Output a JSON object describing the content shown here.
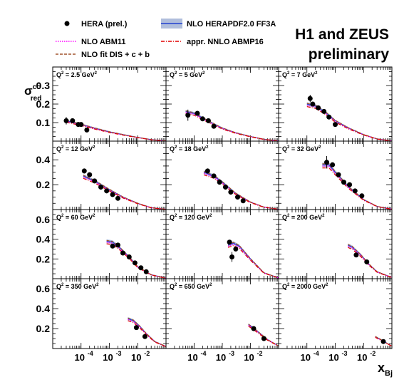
{
  "header": {
    "title_line1": "H1 and ZEUS",
    "title_line2": "preliminary"
  },
  "legend": {
    "hera": "HERA (prel.)",
    "abm11": "NLO ABM11",
    "fitdis": "NLO fit DIS + c + b",
    "herapdf": "NLO HERAPDF2.0 FF3A",
    "abmp16": "appr. NNLO ABMP16"
  },
  "axes": {
    "ylabel_main": "σ",
    "ylabel_sup": "cc̄",
    "ylabel_sub": "red",
    "xlabel_main": "x",
    "xlabel_sub": "Bj"
  },
  "chart_data": {
    "type": "scatter",
    "xscale": "log",
    "xlim": [
      1e-05,
      0.1
    ],
    "x_ticks": [
      {
        "exp": "-4",
        "value": 0.0001
      },
      {
        "exp": "-3",
        "value": 0.001
      },
      {
        "exp": "-2",
        "value": 0.01
      }
    ],
    "colors": {
      "hera": "#000000",
      "abm11": "#ff00ff",
      "fitdis": "#a0522d",
      "herapdf": "#2040d0",
      "herapdf_band": "#b0bedc",
      "abmp16": "#e00000"
    },
    "rows": [
      {
        "ylim": [
          0,
          0.4
        ],
        "ticks": [
          {
            "v": 0.1,
            "label": "0.1"
          },
          {
            "v": 0.2,
            "label": "0.2"
          },
          {
            "v": 0.3,
            "label": "0.3"
          }
        ]
      },
      {
        "ylim": [
          0,
          0.55
        ],
        "ticks": [
          {
            "v": 0.2,
            "label": "0.2"
          },
          {
            "v": 0.4,
            "label": "0.4"
          }
        ]
      },
      {
        "ylim": [
          0,
          0.7
        ],
        "ticks": [
          {
            "v": 0.2,
            "label": "0.2"
          },
          {
            "v": 0.4,
            "label": "0.4"
          },
          {
            "v": 0.6,
            "label": "0.6"
          }
        ]
      },
      {
        "ylim": [
          0,
          0.7
        ],
        "ticks": [
          {
            "v": 0.2,
            "label": "0.2"
          },
          {
            "v": 0.4,
            "label": "0.4"
          },
          {
            "v": 0.6,
            "label": "0.6"
          }
        ]
      }
    ],
    "panels": [
      {
        "q2": "2.5",
        "row": 0,
        "col": 0,
        "points": [
          [
            3e-05,
            0.11,
            0.02
          ],
          [
            5e-05,
            0.11,
            0.01
          ],
          [
            8e-05,
            0.09,
            0.01
          ],
          [
            0.0001,
            0.09,
            0.01
          ],
          [
            0.00016,
            0.06,
            0.01
          ]
        ],
        "theory": {
          "x": [
            3e-05,
            0.0001,
            0.0003,
            0.001,
            0.003,
            0.01,
            0.03,
            0.1
          ],
          "y": [
            0.11,
            0.09,
            0.07,
            0.05,
            0.035,
            0.02,
            0.008,
            0.001
          ]
        }
      },
      {
        "q2": "5",
        "row": 0,
        "col": 1,
        "points": [
          [
            6e-05,
            0.14,
            0.03
          ],
          [
            0.00013,
            0.15,
            0.01
          ],
          [
            0.0002,
            0.12,
            0.01
          ],
          [
            0.00032,
            0.11,
            0.01
          ],
          [
            0.0005,
            0.08,
            0.01
          ]
        ],
        "theory": {
          "x": [
            5e-05,
            0.0001,
            0.0003,
            0.001,
            0.003,
            0.01,
            0.03,
            0.1
          ],
          "y": [
            0.16,
            0.15,
            0.11,
            0.07,
            0.045,
            0.025,
            0.01,
            0.001
          ]
        }
      },
      {
        "q2": "7",
        "row": 0,
        "col": 2,
        "points": [
          [
            0.00013,
            0.23,
            0.02
          ],
          [
            0.00016,
            0.2,
            0.01
          ],
          [
            0.00025,
            0.18,
            0.01
          ],
          [
            0.0004,
            0.16,
            0.01
          ],
          [
            0.0006,
            0.13,
            0.01
          ],
          [
            0.001,
            0.09,
            0.01
          ]
        ],
        "theory": {
          "x": [
            0.0001,
            0.0002,
            0.0005,
            0.001,
            0.003,
            0.01,
            0.03,
            0.1
          ],
          "y": [
            0.2,
            0.19,
            0.15,
            0.11,
            0.07,
            0.035,
            0.012,
            0.001
          ]
        }
      },
      {
        "q2": "12",
        "row": 1,
        "col": 0,
        "points": [
          [
            0.00013,
            0.31,
            0.02
          ],
          [
            0.0002,
            0.28,
            0.01
          ],
          [
            0.0003,
            0.23,
            0.01
          ],
          [
            0.0005,
            0.18,
            0.01
          ],
          [
            0.0008,
            0.15,
            0.01
          ],
          [
            0.0013,
            0.12,
            0.01
          ],
          [
            0.002,
            0.09,
            0.01
          ]
        ],
        "theory": {
          "x": [
            0.00012,
            0.0003,
            0.001,
            0.003,
            0.01,
            0.03,
            0.1
          ],
          "y": [
            0.27,
            0.23,
            0.16,
            0.1,
            0.05,
            0.015,
            0.002
          ]
        }
      },
      {
        "q2": "18",
        "row": 1,
        "col": 1,
        "points": [
          [
            0.0003,
            0.31,
            0.02
          ],
          [
            0.0005,
            0.27,
            0.01
          ],
          [
            0.0008,
            0.22,
            0.01
          ],
          [
            0.0013,
            0.18,
            0.01
          ],
          [
            0.002,
            0.14,
            0.01
          ],
          [
            0.0035,
            0.1,
            0.01
          ],
          [
            0.0055,
            0.07,
            0.01
          ]
        ],
        "theory": {
          "x": [
            0.00022,
            0.0005,
            0.001,
            0.003,
            0.01,
            0.03,
            0.1
          ],
          "y": [
            0.3,
            0.27,
            0.22,
            0.13,
            0.06,
            0.02,
            0.002
          ]
        }
      },
      {
        "q2": "32",
        "row": 1,
        "col": 2,
        "points": [
          [
            0.0005,
            0.38,
            0.05
          ],
          [
            0.0008,
            0.36,
            0.01
          ],
          [
            0.0013,
            0.28,
            0.01
          ],
          [
            0.002,
            0.22,
            0.01
          ],
          [
            0.0032,
            0.2,
            0.01
          ],
          [
            0.005,
            0.15,
            0.01
          ],
          [
            0.0087,
            0.11,
            0.01
          ]
        ],
        "theory": {
          "x": [
            0.00035,
            0.0006,
            0.001,
            0.003,
            0.01,
            0.03,
            0.1
          ],
          "y": [
            0.36,
            0.36,
            0.3,
            0.18,
            0.08,
            0.025,
            0.003
          ]
        }
      },
      {
        "q2": "60",
        "row": 2,
        "col": 0,
        "points": [
          [
            0.0013,
            0.33,
            0.02
          ],
          [
            0.002,
            0.34,
            0.01
          ],
          [
            0.003,
            0.26,
            0.01
          ],
          [
            0.005,
            0.22,
            0.01
          ],
          [
            0.008,
            0.16,
            0.01
          ],
          [
            0.013,
            0.11,
            0.01
          ],
          [
            0.02,
            0.07,
            0.01
          ]
        ],
        "theory": {
          "x": [
            0.0008,
            0.0013,
            0.002,
            0.005,
            0.01,
            0.03,
            0.1
          ],
          "y": [
            0.38,
            0.37,
            0.33,
            0.22,
            0.12,
            0.04,
            0.005
          ]
        }
      },
      {
        "q2": "120",
        "row": 2,
        "col": 1,
        "points": [
          [
            0.0018,
            0.37,
            0.02
          ],
          [
            0.0022,
            0.22,
            0.05
          ],
          [
            0.003,
            0.3,
            0.01
          ]
        ],
        "theory": {
          "x": [
            0.0016,
            0.0025,
            0.004,
            0.01,
            0.03,
            0.1
          ],
          "y": [
            0.34,
            0.36,
            0.33,
            0.2,
            0.06,
            0.008
          ]
        }
      },
      {
        "q2": "200",
        "row": 2,
        "col": 2,
        "points": [
          [
            0.0055,
            0.24,
            0.02
          ],
          [
            0.013,
            0.17,
            0.02
          ]
        ],
        "theory": {
          "x": [
            0.0028,
            0.004,
            0.008,
            0.015,
            0.03,
            0.1
          ],
          "y": [
            0.34,
            0.32,
            0.24,
            0.15,
            0.07,
            0.012
          ]
        }
      },
      {
        "q2": "350",
        "row": 3,
        "col": 0,
        "points": [
          [
            0.009,
            0.21,
            0.02
          ],
          [
            0.018,
            0.12,
            0.01
          ]
        ],
        "theory": {
          "x": [
            0.0045,
            0.007,
            0.012,
            0.02,
            0.04,
            0.1
          ],
          "y": [
            0.3,
            0.28,
            0.22,
            0.15,
            0.07,
            0.02
          ]
        }
      },
      {
        "q2": "650",
        "row": 3,
        "col": 1,
        "points": [
          [
            0.013,
            0.2,
            0.01
          ],
          [
            0.03,
            0.1,
            0.01
          ]
        ],
        "theory": {
          "x": [
            0.0085,
            0.012,
            0.02,
            0.04,
            0.1
          ],
          "y": [
            0.24,
            0.21,
            0.16,
            0.09,
            0.025
          ]
        }
      },
      {
        "q2": "2000",
        "row": 3,
        "col": 2,
        "points": [
          [
            0.05,
            0.07,
            0.01
          ]
        ],
        "theory": {
          "x": [
            0.026,
            0.04,
            0.07,
            0.1
          ],
          "y": [
            0.12,
            0.09,
            0.05,
            0.025
          ]
        }
      }
    ]
  }
}
